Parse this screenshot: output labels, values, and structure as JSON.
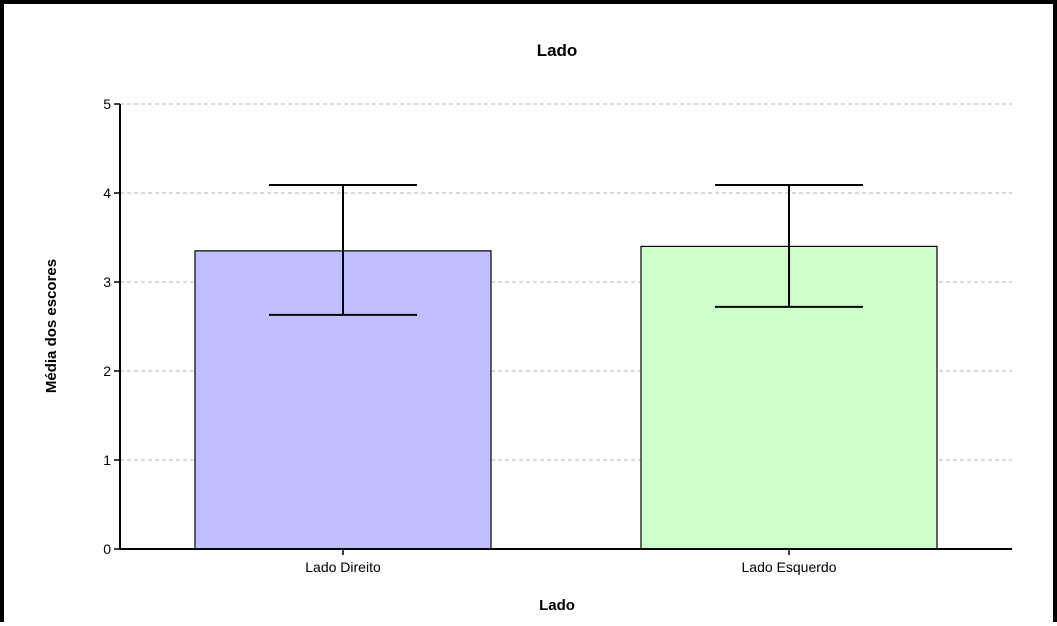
{
  "chart_data": {
    "type": "bar",
    "title": "Lado",
    "xlabel": "Lado",
    "ylabel": "Média dos escores",
    "categories": [
      "Lado Direito",
      "Lado Esquerdo"
    ],
    "values": [
      3.35,
      3.4
    ],
    "error_bars": {
      "lower": [
        2.63,
        2.72
      ],
      "upper": [
        4.09,
        4.09
      ]
    },
    "ylim": [
      0,
      5
    ],
    "yticks": [
      0,
      1,
      2,
      3,
      4,
      5
    ],
    "grid": true,
    "legend": "none",
    "bar_colors": [
      "#c0c0ff",
      "#ccffcc"
    ]
  }
}
